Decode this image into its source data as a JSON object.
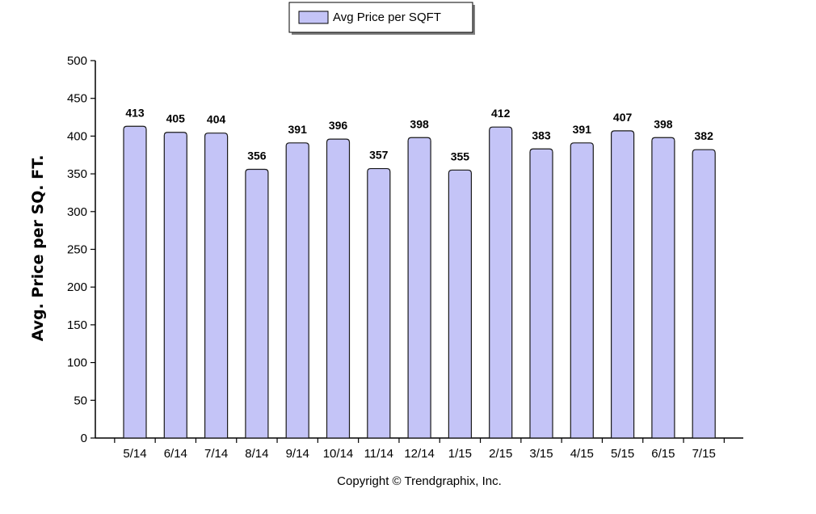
{
  "chart_data": {
    "type": "bar",
    "categories": [
      "5/14",
      "6/14",
      "7/14",
      "8/14",
      "9/14",
      "10/14",
      "11/14",
      "12/14",
      "1/15",
      "2/15",
      "3/15",
      "4/15",
      "5/15",
      "6/15",
      "7/15"
    ],
    "series": [
      {
        "name": "Avg Price per SQFT",
        "values": [
          413,
          405,
          404,
          356,
          391,
          396,
          357,
          398,
          355,
          412,
          383,
          391,
          407,
          398,
          382
        ]
      }
    ],
    "ylabel": "Avg. Price per SQ. FT.",
    "xlabel": "",
    "ylim": [
      0,
      500
    ],
    "yticks": [
      0,
      50,
      100,
      150,
      200,
      250,
      300,
      350,
      400,
      450,
      500
    ],
    "grid": false,
    "legend_position": "top-center",
    "bar_color": "#c4c4f7",
    "bar_edge_color": "#1a1a1a",
    "show_data_labels": true
  },
  "footer": {
    "copyright": "Copyright © Trendgraphix, Inc."
  }
}
